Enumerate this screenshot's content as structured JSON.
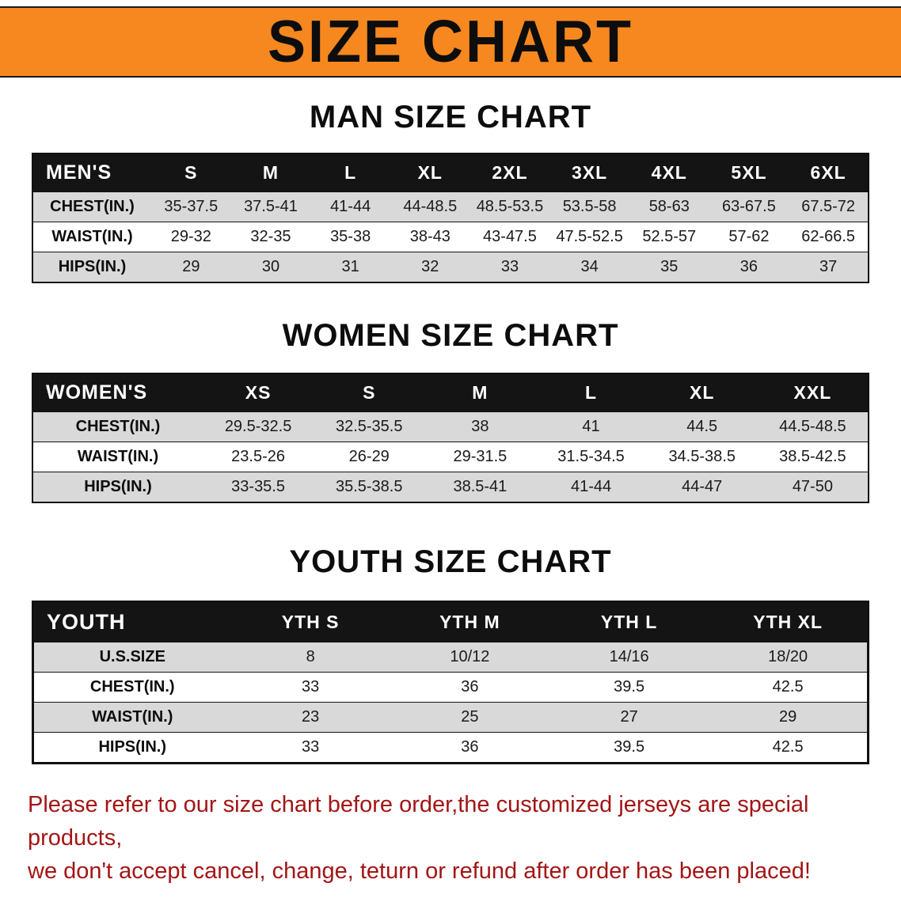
{
  "banner": {
    "title": "SIZE CHART"
  },
  "men": {
    "heading": "MAN SIZE CHART",
    "header": [
      "MEN'S",
      "S",
      "M",
      "L",
      "XL",
      "2XL",
      "3XL",
      "4XL",
      "5XL",
      "6XL"
    ],
    "rows": [
      {
        "label": "CHEST(IN.)",
        "values": [
          "35-37.5",
          "37.5-41",
          "41-44",
          "44-48.5",
          "48.5-53.5",
          "53.5-58",
          "58-63",
          "63-67.5",
          "67.5-72"
        ]
      },
      {
        "label": "WAIST(IN.)",
        "values": [
          "29-32",
          "32-35",
          "35-38",
          "38-43",
          "43-47.5",
          "47.5-52.5",
          "52.5-57",
          "57-62",
          "62-66.5"
        ]
      },
      {
        "label": "HIPS(IN.)",
        "values": [
          "29",
          "30",
          "31",
          "32",
          "33",
          "34",
          "35",
          "36",
          "37"
        ]
      }
    ]
  },
  "women": {
    "heading": "WOMEN SIZE CHART",
    "header": [
      "WOMEN'S",
      "XS",
      "S",
      "M",
      "L",
      "XL",
      "XXL"
    ],
    "rows": [
      {
        "label": "CHEST(IN.)",
        "values": [
          "29.5-32.5",
          "32.5-35.5",
          "38",
          "41",
          "44.5",
          "44.5-48.5"
        ]
      },
      {
        "label": "WAIST(IN.)",
        "values": [
          "23.5-26",
          "26-29",
          "29-31.5",
          "31.5-34.5",
          "34.5-38.5",
          "38.5-42.5"
        ]
      },
      {
        "label": "HIPS(IN.)",
        "values": [
          "33-35.5",
          "35.5-38.5",
          "38.5-41",
          "41-44",
          "44-47",
          "47-50"
        ]
      }
    ]
  },
  "youth": {
    "heading": "YOUTH SIZE CHART",
    "header": [
      "YOUTH",
      "YTH S",
      "YTH M",
      "YTH L",
      "YTH XL"
    ],
    "rows": [
      {
        "label": "U.S.SIZE",
        "values": [
          "8",
          "10/12",
          "14/16",
          "18/20"
        ]
      },
      {
        "label": "CHEST(IN.)",
        "values": [
          "33",
          "36",
          "39.5",
          "42.5"
        ]
      },
      {
        "label": "WAIST(IN.)",
        "values": [
          "23",
          "25",
          "27",
          "29"
        ]
      },
      {
        "label": "HIPS(IN.)",
        "values": [
          "33",
          "36",
          "39.5",
          "42.5"
        ]
      }
    ]
  },
  "footer": {
    "line1": "Please refer to our size chart before order,the customized jerseys are special products,",
    "line2": "we don't accept cancel, change, teturn or refund after order has been placed!"
  },
  "colors": {
    "banner_bg": "#f6881f",
    "table_header_bg": "#141414",
    "row_stripe": "#d9d9d9",
    "footer_text": "#a31515"
  }
}
